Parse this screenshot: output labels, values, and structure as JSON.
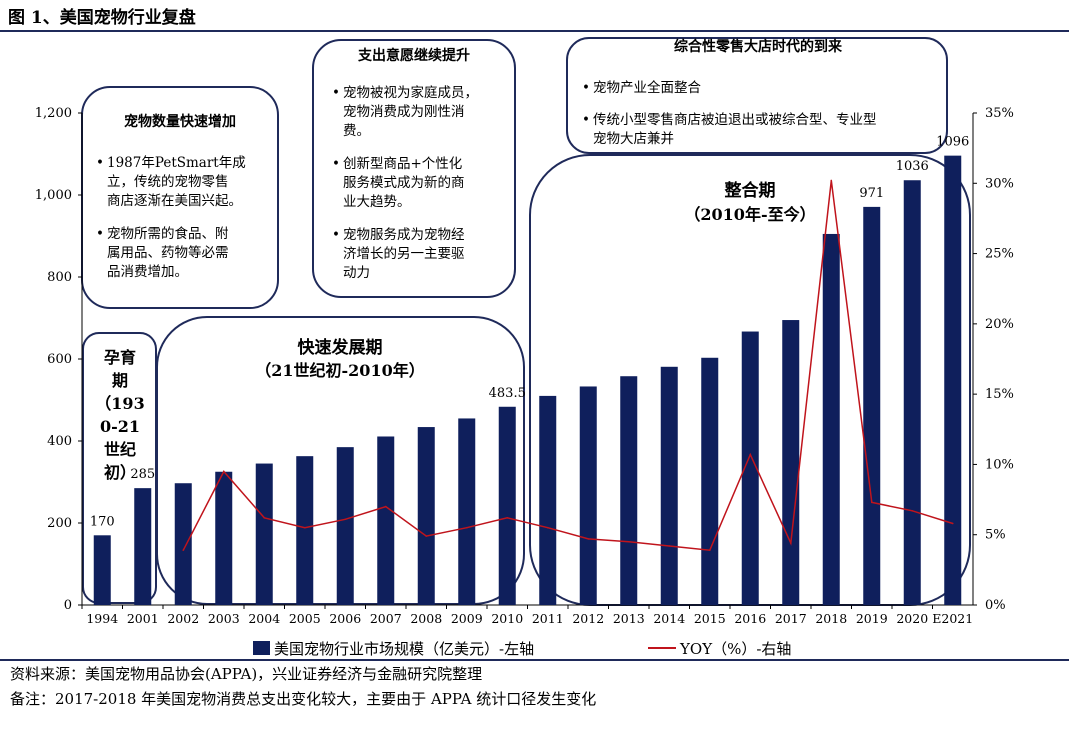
{
  "figure_title": "图 1、美国宠物行业复盘",
  "source_note": "资料来源：美国宠物用品协会(APPA)，兴业证券经济与金融研究院整理",
  "remark_note": "备注：2017-2018 年美国宠物消费总支出变化较大，主要由于 APPA 统计口径发生变化",
  "colors": {
    "bar": "#0f1f5c",
    "line": "#c0141c",
    "frame": "#1f2a5a"
  },
  "chart_data": {
    "type": "bar",
    "title": "",
    "categories": [
      "1994",
      "2001",
      "2002",
      "2003",
      "2004",
      "2005",
      "2006",
      "2007",
      "2008",
      "2009",
      "2010",
      "2011",
      "2012",
      "2013",
      "2014",
      "2015",
      "2016",
      "2017",
      "2018",
      "2019",
      "2020",
      "E2021"
    ],
    "series": [
      {
        "name": "美国宠物行业市场规模（亿美元）-左轴",
        "type": "bar",
        "axis": "left",
        "values": [
          170,
          285,
          297,
          325,
          345,
          363,
          385,
          411,
          434,
          455,
          483.5,
          510,
          533,
          558,
          581,
          603,
          667,
          695,
          905,
          971,
          1036,
          1096
        ]
      },
      {
        "name": "YOY（%）-右轴",
        "type": "line",
        "axis": "right",
        "values": [
          null,
          null,
          3.9,
          9.5,
          6.2,
          5.5,
          6.1,
          7.0,
          4.9,
          5.5,
          6.2,
          5.5,
          4.7,
          4.5,
          4.2,
          3.9,
          10.7,
          4.4,
          30.2,
          7.3,
          6.7,
          5.8
        ]
      }
    ],
    "y_left": {
      "min": 0,
      "max": 1200,
      "ticks": [
        0,
        200,
        400,
        600,
        800,
        "1,000",
        "1,200"
      ]
    },
    "y_right": {
      "min": 0,
      "max": 35,
      "ticks": [
        "0%",
        "5%",
        "10%",
        "15%",
        "20%",
        "25%",
        "30%",
        "35%"
      ]
    },
    "data_labels": [
      {
        "index": 0,
        "text": "170"
      },
      {
        "index": 1,
        "text": "285"
      },
      {
        "index": 10,
        "text": "483.5"
      },
      {
        "index": 19,
        "text": "971"
      },
      {
        "index": 20,
        "text": "1036"
      },
      {
        "index": 21,
        "text": "1096"
      }
    ],
    "legend": {
      "placement": "bottom",
      "entries": [
        "美国宠物行业市场规模（亿美元）-左轴",
        "YOY（%）-右轴"
      ]
    },
    "grid": false
  },
  "annotations": {
    "incubation": {
      "lines": [
        "孕育",
        "期",
        "（193",
        "0-21",
        "世纪",
        "初）"
      ]
    },
    "fast": {
      "title": "快速发展期",
      "subtitle": "（21世纪初-2010年）"
    },
    "consolidation": {
      "title": "整合期",
      "subtitle": "（2010年-至今）"
    },
    "box1": {
      "title": "宠物数量快速增加",
      "bullets": [
        [
          "1987年PetSmart年成",
          "立，传统的宠物零售",
          "商店逐渐在美国兴起。"
        ],
        [
          "宠物所需的食品、附",
          "属用品、药物等必需",
          "品消费增加。"
        ]
      ]
    },
    "box2": {
      "title": "支出意愿继续提升",
      "bullets": [
        [
          "宠物被视为家庭成员，",
          "宠物消费成为刚性消",
          "费。"
        ],
        [
          "创新型商品+个性化",
          "服务模式成为新的商",
          "业大趋势。"
        ],
        [
          "宠物服务成为宠物经",
          "济增长的另一主要驱",
          "动力"
        ]
      ]
    },
    "box3": {
      "title": "综合性零售大店时代的到来",
      "bullets": [
        [
          "宠物产业全面整合"
        ],
        [
          "传统小型零售商店被迫退出或被综合型、专业型",
          "宠物大店兼并"
        ]
      ]
    }
  }
}
